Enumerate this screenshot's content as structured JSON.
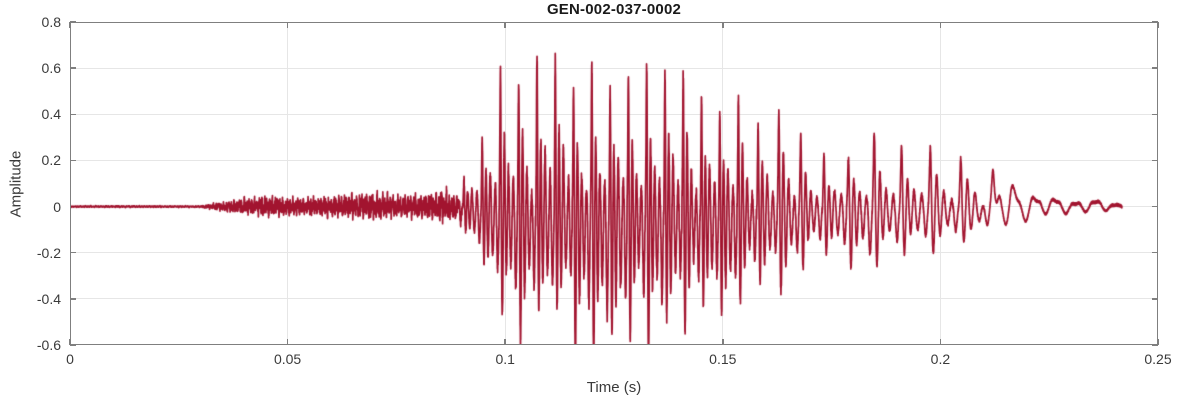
{
  "chart_data": {
    "type": "line",
    "chart_kind": "audio-waveform",
    "title": "GEN-002-037-0002",
    "xlabel": "Time (s)",
    "ylabel": "Amplitude",
    "xlim": [
      0,
      0.25
    ],
    "ylim": [
      -0.6,
      0.8
    ],
    "xticks": [
      0,
      0.05,
      0.1,
      0.15,
      0.2,
      0.25
    ],
    "xtick_labels": [
      "0",
      "0.05",
      "0.1",
      "0.15",
      "0.2",
      "0.25"
    ],
    "yticks": [
      -0.6,
      -0.4,
      -0.2,
      0,
      0.2,
      0.4,
      0.6,
      0.8
    ],
    "ytick_labels": [
      "-0.6",
      "-0.4",
      "-0.2",
      "0",
      "0.2",
      "0.4",
      "0.6",
      "0.8"
    ],
    "grid": true,
    "legend": "none",
    "colors": {
      "line": "#A2142F",
      "axis": "#7F7F7F",
      "grid": "#E6E6E6",
      "tick_text": "#3A3A3A",
      "title_text": "#1A1A1A",
      "background": "#FFFFFF"
    },
    "signal": {
      "description": "speech-like waveform: silence, weak fricative noise, strong voiced burst peaking ~0.68/-0.6 between t=0.10 and t=0.145, decay with secondary bump ~0.3 near t=0.185, small tail ending at t=0.2417",
      "t_end": 0.2417,
      "segments": {
        "silence_until": 0.031,
        "fricative_until": 0.089,
        "voiced_until": 0.212,
        "tail_until": 0.2417
      },
      "pitch_period_s": 0.0042,
      "envelope": {
        "t": [
          0.0,
          0.03,
          0.033,
          0.036,
          0.038,
          0.042,
          0.046,
          0.05,
          0.055,
          0.06,
          0.065,
          0.07,
          0.075,
          0.08,
          0.084,
          0.088,
          0.091,
          0.094,
          0.097,
          0.1,
          0.104,
          0.108,
          0.112,
          0.116,
          0.12,
          0.124,
          0.128,
          0.132,
          0.136,
          0.14,
          0.144,
          0.148,
          0.152,
          0.156,
          0.16,
          0.164,
          0.168,
          0.172,
          0.176,
          0.18,
          0.184,
          0.188,
          0.192,
          0.196,
          0.2,
          0.204,
          0.208,
          0.212,
          0.216,
          0.22,
          0.225,
          0.23,
          0.235,
          0.24,
          0.2417
        ],
        "upper": [
          0.004,
          0.004,
          0.015,
          0.025,
          0.035,
          0.045,
          0.05,
          0.04,
          0.045,
          0.05,
          0.065,
          0.07,
          0.055,
          0.06,
          0.07,
          0.1,
          0.16,
          0.3,
          0.44,
          0.68,
          0.68,
          0.63,
          0.64,
          0.62,
          0.63,
          0.6,
          0.65,
          0.62,
          0.64,
          0.55,
          0.52,
          0.5,
          0.48,
          0.45,
          0.43,
          0.38,
          0.3,
          0.24,
          0.2,
          0.27,
          0.3,
          0.26,
          0.28,
          0.26,
          0.22,
          0.23,
          0.19,
          0.16,
          0.11,
          0.07,
          0.04,
          0.03,
          0.03,
          0.02,
          0.004
        ],
        "lower": [
          -0.004,
          -0.004,
          -0.015,
          -0.025,
          -0.03,
          -0.04,
          -0.045,
          -0.04,
          -0.045,
          -0.05,
          -0.055,
          -0.06,
          -0.05,
          -0.055,
          -0.06,
          -0.09,
          -0.13,
          -0.22,
          -0.38,
          -0.5,
          -0.55,
          -0.52,
          -0.55,
          -0.56,
          -0.58,
          -0.6,
          -0.58,
          -0.6,
          -0.57,
          -0.52,
          -0.5,
          -0.46,
          -0.44,
          -0.41,
          -0.37,
          -0.33,
          -0.28,
          -0.22,
          -0.18,
          -0.24,
          -0.27,
          -0.22,
          -0.23,
          -0.2,
          -0.18,
          -0.16,
          -0.14,
          -0.11,
          -0.08,
          -0.05,
          -0.03,
          -0.025,
          -0.02,
          -0.015,
          -0.004
        ]
      }
    }
  }
}
